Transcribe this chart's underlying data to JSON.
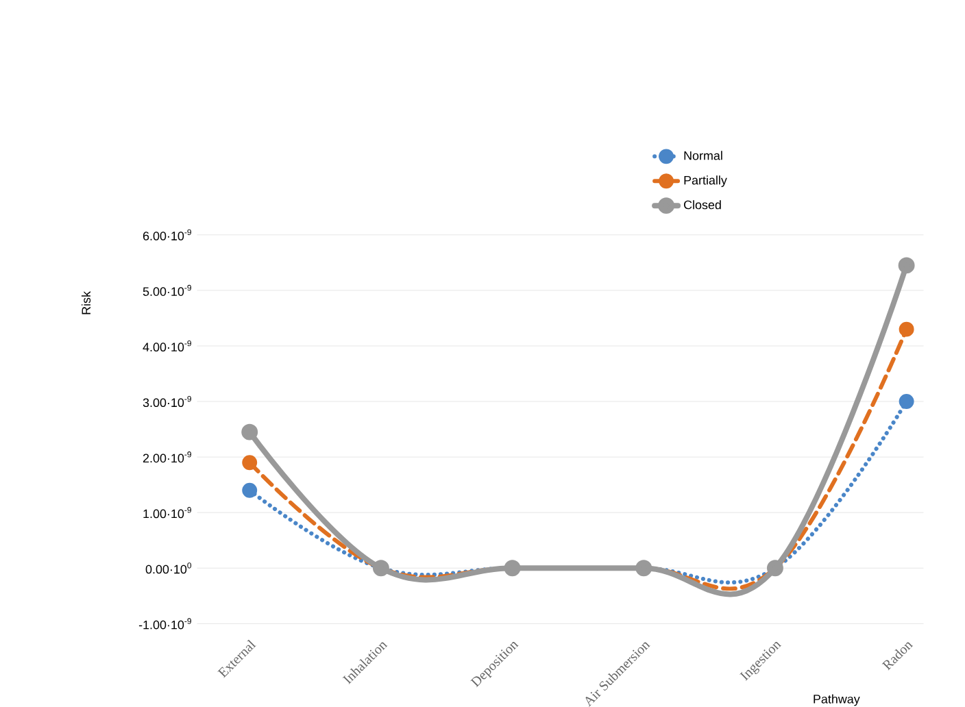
{
  "chart_data": {
    "type": "line",
    "xlabel": "Pathway",
    "ylabel": "Risk",
    "categories": [
      "External",
      "Inhalation",
      "Deposition",
      "Air Submersion",
      "Ingestion",
      "Radon"
    ],
    "series": [
      {
        "name": "Normal",
        "color": "#4a86c8",
        "line_style": "dotted",
        "values": [
          1.4e-09,
          0,
          0,
          0,
          0,
          3e-09
        ]
      },
      {
        "name": "Partially",
        "color": "#e07020",
        "line_style": "dashed",
        "values": [
          1.9e-09,
          0,
          0,
          0,
          0,
          4.3e-09
        ]
      },
      {
        "name": "Closed",
        "color": "#999999",
        "line_style": "solid",
        "values": [
          2.45e-09,
          0,
          0,
          0,
          0,
          5.45e-09
        ]
      }
    ],
    "ylim": [
      -1.15e-09,
      6.25e-09
    ],
    "yticks": [
      {
        "value": -1e-09,
        "label": "-1.00·10$^{-9}$"
      },
      {
        "value": 0,
        "label": "0.00·10$^{0}$"
      },
      {
        "value": 1e-09,
        "label": "1.00·10$^{-9}$"
      },
      {
        "value": 2e-09,
        "label": "2.00·10$^{-9}$"
      },
      {
        "value": 3e-09,
        "label": "3.00·10$^{-9}$"
      },
      {
        "value": 4e-09,
        "label": "4.00·10$^{-9}$"
      },
      {
        "value": 5e-09,
        "label": "5.00·10$^{-9}$"
      },
      {
        "value": 6e-09,
        "label": "6.00·10$^{-9}$"
      }
    ],
    "grid": "y",
    "legend": "top right",
    "marker": "circle"
  }
}
